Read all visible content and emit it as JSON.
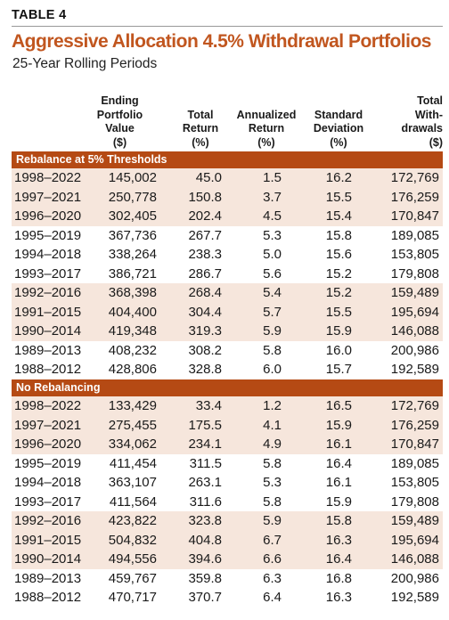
{
  "table_label": "TABLE 4",
  "title": "Aggressive Allocation 4.5% Withdrawal Portfolios",
  "subtitle": "25-Year Rolling Periods",
  "columns": [
    {
      "lines": [
        "Ending",
        "Portfolio",
        "Value",
        "($)"
      ]
    },
    {
      "lines": [
        "Total",
        "Return",
        "(%)"
      ]
    },
    {
      "lines": [
        "Annualized",
        "Return",
        "(%)"
      ]
    },
    {
      "lines": [
        "Standard",
        "Deviation",
        "(%)"
      ]
    },
    {
      "lines": [
        "Total",
        "With-",
        "drawals",
        "($)"
      ]
    }
  ],
  "sections": [
    {
      "title": "Rebalance at 5% Thresholds",
      "rows": [
        {
          "period": "1998–2022",
          "value": "145,002",
          "total": "45.0",
          "ann": "1.5",
          "std": "16.2",
          "withdrawals": "172,769"
        },
        {
          "period": "1997–2021",
          "value": "250,778",
          "total": "150.8",
          "ann": "3.7",
          "std": "15.5",
          "withdrawals": "176,259"
        },
        {
          "period": "1996–2020",
          "value": "302,405",
          "total": "202.4",
          "ann": "4.5",
          "std": "15.4",
          "withdrawals": "170,847"
        },
        {
          "period": "1995–2019",
          "value": "367,736",
          "total": "267.7",
          "ann": "5.3",
          "std": "15.8",
          "withdrawals": "189,085"
        },
        {
          "period": "1994–2018",
          "value": "338,264",
          "total": "238.3",
          "ann": "5.0",
          "std": "15.6",
          "withdrawals": "153,805"
        },
        {
          "period": "1993–2017",
          "value": "386,721",
          "total": "286.7",
          "ann": "5.6",
          "std": "15.2",
          "withdrawals": "179,808"
        },
        {
          "period": "1992–2016",
          "value": "368,398",
          "total": "268.4",
          "ann": "5.4",
          "std": "15.2",
          "withdrawals": "159,489"
        },
        {
          "period": "1991–2015",
          "value": "404,400",
          "total": "304.4",
          "ann": "5.7",
          "std": "15.5",
          "withdrawals": "195,694"
        },
        {
          "period": "1990–2014",
          "value": "419,348",
          "total": "319.3",
          "ann": "5.9",
          "std": "15.9",
          "withdrawals": "146,088"
        },
        {
          "period": "1989–2013",
          "value": "408,232",
          "total": "308.2",
          "ann": "5.8",
          "std": "16.0",
          "withdrawals": "200,986"
        },
        {
          "period": "1988–2012",
          "value": "428,806",
          "total": "328.8",
          "ann": "6.0",
          "std": "15.7",
          "withdrawals": "192,589"
        }
      ]
    },
    {
      "title": "No Rebalancing",
      "rows": [
        {
          "period": "1998–2022",
          "value": "133,429",
          "total": "33.4",
          "ann": "1.2",
          "std": "16.5",
          "withdrawals": "172,769"
        },
        {
          "period": "1997–2021",
          "value": "275,455",
          "total": "175.5",
          "ann": "4.1",
          "std": "15.9",
          "withdrawals": "176,259"
        },
        {
          "period": "1996–2020",
          "value": "334,062",
          "total": "234.1",
          "ann": "4.9",
          "std": "16.1",
          "withdrawals": "170,847"
        },
        {
          "period": "1995–2019",
          "value": "411,454",
          "total": "311.5",
          "ann": "5.8",
          "std": "16.4",
          "withdrawals": "189,085"
        },
        {
          "period": "1994–2018",
          "value": "363,107",
          "total": "263.1",
          "ann": "5.3",
          "std": "16.1",
          "withdrawals": "153,805"
        },
        {
          "period": "1993–2017",
          "value": "411,564",
          "total": "311.6",
          "ann": "5.8",
          "std": "15.9",
          "withdrawals": "179,808"
        },
        {
          "period": "1992–2016",
          "value": "423,822",
          "total": "323.8",
          "ann": "5.9",
          "std": "15.8",
          "withdrawals": "159,489"
        },
        {
          "period": "1991–2015",
          "value": "504,832",
          "total": "404.8",
          "ann": "6.7",
          "std": "16.3",
          "withdrawals": "195,694"
        },
        {
          "period": "1990–2014",
          "value": "494,556",
          "total": "394.6",
          "ann": "6.6",
          "std": "16.4",
          "withdrawals": "146,088"
        },
        {
          "period": "1989–2013",
          "value": "459,767",
          "total": "359.8",
          "ann": "6.3",
          "std": "16.8",
          "withdrawals": "200,986"
        },
        {
          "period": "1988–2012",
          "value": "470,717",
          "total": "370.7",
          "ann": "6.4",
          "std": "16.3",
          "withdrawals": "192,589"
        }
      ]
    }
  ],
  "colors": {
    "title": "#c1561f",
    "section_band": "#b54a14",
    "row_shade": "#f6e6dc"
  }
}
